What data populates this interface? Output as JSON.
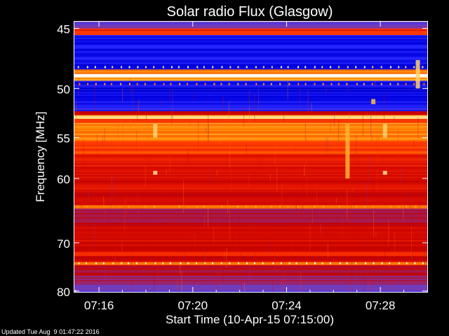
{
  "chart_data": {
    "type": "heatmap",
    "title": "Solar radio Flux (Glasgow)",
    "xlabel": "Start Time (10-Apr-15 07:15:00)",
    "ylabel": "Frequency [MHz]",
    "footer": "Updated Tue Aug  9 01:47:22 2016",
    "x_ticks": [
      "07:16",
      "07:20",
      "07:24",
      "07:28"
    ],
    "x_tick_minutes": [
      1,
      5,
      9,
      13
    ],
    "x_range_minutes": [
      -0.05,
      15.0
    ],
    "y_ticks": [
      45,
      50,
      55,
      60,
      70,
      80
    ],
    "y_range": [
      44.5,
      80.2
    ],
    "y_scale": "reciprocal",
    "colormap": [
      "#000060",
      "#0000e0",
      "#2828ff",
      "#7040c0",
      "#a02060",
      "#c00000",
      "#e01000",
      "#ff3a00",
      "#ff8000",
      "#ffc040",
      "#fff0c0",
      "#ffffff"
    ],
    "frequency_bands": [
      {
        "from": 44.5,
        "to": 45.0,
        "level": 0.25
      },
      {
        "from": 45.0,
        "to": 45.5,
        "level": 0.6
      },
      {
        "from": 45.5,
        "to": 48.3,
        "level": 0.13
      },
      {
        "from": 48.3,
        "to": 48.7,
        "level": 0.7
      },
      {
        "from": 48.7,
        "to": 49.0,
        "level": 1.0
      },
      {
        "from": 49.0,
        "to": 49.3,
        "level": 0.75
      },
      {
        "from": 49.3,
        "to": 51.5,
        "level": 0.12
      },
      {
        "from": 51.5,
        "to": 52.2,
        "level": 0.2
      },
      {
        "from": 52.2,
        "to": 52.6,
        "level": 0.5
      },
      {
        "from": 52.6,
        "to": 53.0,
        "level": 0.85
      },
      {
        "from": 53.0,
        "to": 53.4,
        "level": 0.6
      },
      {
        "from": 53.4,
        "to": 54.0,
        "level": 0.75
      },
      {
        "from": 54.0,
        "to": 55.5,
        "level": 0.72
      },
      {
        "from": 55.5,
        "to": 57.0,
        "level": 0.62
      },
      {
        "from": 57.0,
        "to": 59.0,
        "level": 0.55
      },
      {
        "from": 59.0,
        "to": 61.5,
        "level": 0.52
      },
      {
        "from": 61.5,
        "to": 63.8,
        "level": 0.5
      },
      {
        "from": 63.8,
        "to": 64.3,
        "level": 0.68
      },
      {
        "from": 64.3,
        "to": 66.5,
        "level": 0.4
      },
      {
        "from": 66.5,
        "to": 68.5,
        "level": 0.48
      },
      {
        "from": 68.5,
        "to": 71.5,
        "level": 0.52
      },
      {
        "from": 71.5,
        "to": 72.5,
        "level": 0.58
      },
      {
        "from": 72.5,
        "to": 73.7,
        "level": 0.48
      },
      {
        "from": 73.7,
        "to": 74.3,
        "level": 0.75
      },
      {
        "from": 74.3,
        "to": 76.5,
        "level": 0.42
      },
      {
        "from": 76.5,
        "to": 78.5,
        "level": 0.36
      },
      {
        "from": 78.5,
        "to": 80.2,
        "level": 0.26
      }
    ],
    "events": [
      {
        "minute": 3.4,
        "from": 53.5,
        "to": 55.0,
        "level": 0.85
      },
      {
        "minute": 3.4,
        "from": 59.0,
        "to": 59.5,
        "level": 0.88
      },
      {
        "minute": 11.6,
        "from": 53.5,
        "to": 60.0,
        "level": 0.8
      },
      {
        "minute": 12.7,
        "from": 51.0,
        "to": 51.5,
        "level": 0.82
      },
      {
        "minute": 13.2,
        "from": 53.5,
        "to": 55.0,
        "level": 0.85
      },
      {
        "minute": 13.2,
        "from": 59.0,
        "to": 59.5,
        "level": 0.88
      },
      {
        "minute": 14.6,
        "from": 47.5,
        "to": 50.0,
        "level": 0.85
      }
    ]
  }
}
